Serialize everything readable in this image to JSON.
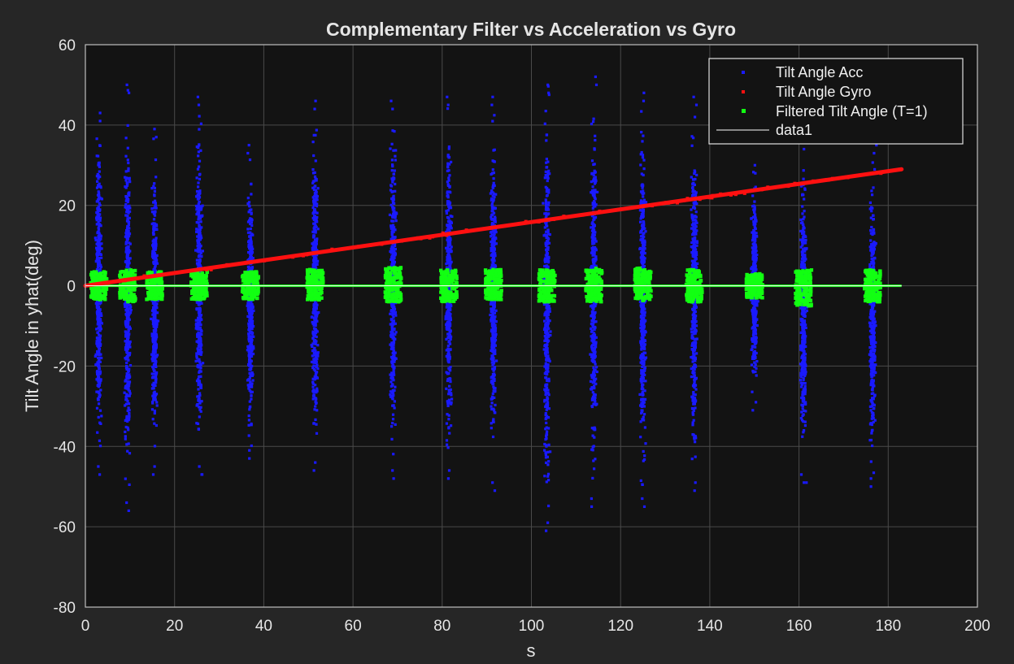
{
  "chart_data": {
    "type": "scatter",
    "title": "Complementary Filter vs Acceleration vs Gyro",
    "xlabel": "s",
    "ylabel": "Tilt Angle in yhat(deg)",
    "xlim": [
      0,
      200
    ],
    "ylim": [
      -80,
      60
    ],
    "xticks": [
      0,
      20,
      40,
      60,
      80,
      100,
      120,
      140,
      160,
      180,
      200
    ],
    "yticks": [
      -80,
      -60,
      -40,
      -20,
      0,
      20,
      40,
      60
    ],
    "grid": true,
    "legend_position": "top-right",
    "colors": {
      "background": "#262626",
      "axes": "#131313",
      "grid": "#4a4a4a",
      "acc": "#1a1aff",
      "gyro": "#ff1010",
      "filtered": "#12ff12",
      "data1": "#ffffff"
    },
    "series": [
      {
        "name": "Tilt Angle Acc",
        "kind": "scatter-bursts",
        "bursts": [
          {
            "x": 3,
            "min": -47,
            "max": 43
          },
          {
            "x": 9.5,
            "min": -56,
            "max": 50
          },
          {
            "x": 15.5,
            "min": -47,
            "max": 39
          },
          {
            "x": 25.5,
            "min": -47,
            "max": 47
          },
          {
            "x": 37,
            "min": -43,
            "max": 35
          },
          {
            "x": 51.5,
            "min": -46,
            "max": 46
          },
          {
            "x": 69,
            "min": -48,
            "max": 46
          },
          {
            "x": 81.5,
            "min": -48,
            "max": 47
          },
          {
            "x": 91.5,
            "min": -51,
            "max": 47
          },
          {
            "x": 103.5,
            "min": -61,
            "max": 50
          },
          {
            "x": 114,
            "min": -55,
            "max": 52
          },
          {
            "x": 125,
            "min": -55,
            "max": 48
          },
          {
            "x": 136.5,
            "min": -51,
            "max": 47
          },
          {
            "x": 150,
            "min": -31,
            "max": 30
          },
          {
            "x": 161,
            "min": -49,
            "max": 36
          },
          {
            "x": 176.5,
            "min": -50,
            "max": 35
          }
        ]
      },
      {
        "name": "Tilt Angle Gyro",
        "kind": "line",
        "x": [
          0,
          183
        ],
        "y": [
          0,
          29
        ]
      },
      {
        "name": "Filtered Tilt Angle (T=1)",
        "kind": "scatter-bursts",
        "baseline": [
          0,
          183
        ],
        "bursts": [
          {
            "x": 3,
            "min": -3.5,
            "max": 3.5
          },
          {
            "x": 9.5,
            "min": -4,
            "max": 4
          },
          {
            "x": 15.5,
            "min": -3.5,
            "max": 3.5
          },
          {
            "x": 25.5,
            "min": -3.5,
            "max": 3.5
          },
          {
            "x": 37,
            "min": -3.5,
            "max": 3.5
          },
          {
            "x": 51.5,
            "min": -3.5,
            "max": 4
          },
          {
            "x": 69,
            "min": -4,
            "max": 4.5
          },
          {
            "x": 81.5,
            "min": -4,
            "max": 4
          },
          {
            "x": 91.5,
            "min": -3.5,
            "max": 4
          },
          {
            "x": 103.5,
            "min": -4,
            "max": 4
          },
          {
            "x": 114,
            "min": -4,
            "max": 4.5
          },
          {
            "x": 125,
            "min": -4,
            "max": 4.5
          },
          {
            "x": 136.5,
            "min": -4,
            "max": 4
          },
          {
            "x": 150,
            "min": -3,
            "max": 3
          },
          {
            "x": 161,
            "min": -5,
            "max": 4
          },
          {
            "x": 176.5,
            "min": -4,
            "max": 4
          }
        ]
      },
      {
        "name": "data1",
        "kind": "line",
        "x": [
          0,
          183
        ],
        "y": [
          0,
          0
        ]
      }
    ]
  }
}
